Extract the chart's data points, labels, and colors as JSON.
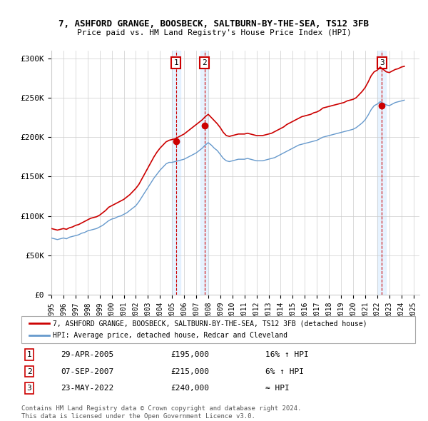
{
  "title1": "7, ASHFORD GRANGE, BOOSBECK, SALTBURN-BY-THE-SEA, TS12 3FB",
  "title2": "Price paid vs. HM Land Registry's House Price Index (HPI)",
  "ylabel": "",
  "background_color": "#ffffff",
  "plot_bg_color": "#ffffff",
  "grid_color": "#cccccc",
  "red_line_color": "#cc0000",
  "blue_line_color": "#6699cc",
  "sale1_date": "29-APR-2005",
  "sale1_price": 195000,
  "sale1_hpi": "16% ↑ HPI",
  "sale2_date": "07-SEP-2007",
  "sale2_price": 215000,
  "sale2_hpi": "6% ↑ HPI",
  "sale3_date": "23-MAY-2022",
  "sale3_price": 240000,
  "sale3_hpi": "≈ HPI",
  "legend_label_red": "7, ASHFORD GRANGE, BOOSBECK, SALTBURN-BY-THE-SEA, TS12 3FB (detached house)",
  "legend_label_blue": "HPI: Average price, detached house, Redcar and Cleveland",
  "footer1": "Contains HM Land Registry data © Crown copyright and database right 2024.",
  "footer2": "This data is licensed under the Open Government Licence v3.0.",
  "xmin": 1995.0,
  "xmax": 2025.5,
  "ymin": 0,
  "ymax": 310000,
  "yticks": [
    0,
    50000,
    100000,
    150000,
    200000,
    250000,
    300000
  ],
  "ytick_labels": [
    "£0",
    "£50K",
    "£100K",
    "£150K",
    "£200K",
    "£250K",
    "£300K"
  ],
  "sale1_x": 2005.33,
  "sale2_x": 2007.68,
  "sale3_x": 2022.39,
  "hpi_data_x": [
    1995.0,
    1995.25,
    1995.5,
    1995.75,
    1996.0,
    1996.25,
    1996.5,
    1996.75,
    1997.0,
    1997.25,
    1997.5,
    1997.75,
    1998.0,
    1998.25,
    1998.5,
    1998.75,
    1999.0,
    1999.25,
    1999.5,
    1999.75,
    2000.0,
    2000.25,
    2000.5,
    2000.75,
    2001.0,
    2001.25,
    2001.5,
    2001.75,
    2002.0,
    2002.25,
    2002.5,
    2002.75,
    2003.0,
    2003.25,
    2003.5,
    2003.75,
    2004.0,
    2004.25,
    2004.5,
    2004.75,
    2005.0,
    2005.25,
    2005.5,
    2005.75,
    2006.0,
    2006.25,
    2006.5,
    2006.75,
    2007.0,
    2007.25,
    2007.5,
    2007.75,
    2008.0,
    2008.25,
    2008.5,
    2008.75,
    2009.0,
    2009.25,
    2009.5,
    2009.75,
    2010.0,
    2010.25,
    2010.5,
    2010.75,
    2011.0,
    2011.25,
    2011.5,
    2011.75,
    2012.0,
    2012.25,
    2012.5,
    2012.75,
    2013.0,
    2013.25,
    2013.5,
    2013.75,
    2014.0,
    2014.25,
    2014.5,
    2014.75,
    2015.0,
    2015.25,
    2015.5,
    2015.75,
    2016.0,
    2016.25,
    2016.5,
    2016.75,
    2017.0,
    2017.25,
    2017.5,
    2017.75,
    2018.0,
    2018.25,
    2018.5,
    2018.75,
    2019.0,
    2019.25,
    2019.5,
    2019.75,
    2020.0,
    2020.25,
    2020.5,
    2020.75,
    2021.0,
    2021.25,
    2021.5,
    2021.75,
    2022.0,
    2022.25,
    2022.5,
    2022.75,
    2023.0,
    2023.25,
    2023.5,
    2023.75,
    2024.0,
    2024.25
  ],
  "hpi_data_y": [
    72000,
    71000,
    70000,
    71000,
    72000,
    71000,
    73000,
    74000,
    75000,
    76000,
    78000,
    79000,
    81000,
    82000,
    83000,
    84000,
    86000,
    88000,
    91000,
    94000,
    96000,
    97000,
    99000,
    100000,
    102000,
    104000,
    107000,
    110000,
    113000,
    118000,
    124000,
    130000,
    136000,
    142000,
    148000,
    153000,
    158000,
    162000,
    166000,
    168000,
    168000,
    169000,
    170000,
    171000,
    172000,
    174000,
    176000,
    178000,
    180000,
    183000,
    186000,
    190000,
    193000,
    190000,
    186000,
    183000,
    178000,
    173000,
    170000,
    169000,
    170000,
    171000,
    172000,
    172000,
    172000,
    173000,
    172000,
    171000,
    170000,
    170000,
    170000,
    171000,
    172000,
    173000,
    174000,
    176000,
    178000,
    180000,
    182000,
    184000,
    186000,
    188000,
    190000,
    191000,
    192000,
    193000,
    194000,
    195000,
    196000,
    198000,
    200000,
    201000,
    202000,
    203000,
    204000,
    205000,
    206000,
    207000,
    208000,
    209000,
    210000,
    212000,
    215000,
    218000,
    222000,
    228000,
    235000,
    240000,
    242000,
    245000,
    243000,
    241000,
    240000,
    242000,
    244000,
    245000,
    246000,
    247000
  ],
  "red_data_x": [
    1995.0,
    1995.25,
    1995.5,
    1995.75,
    1996.0,
    1996.25,
    1996.5,
    1996.75,
    1997.0,
    1997.25,
    1997.5,
    1997.75,
    1998.0,
    1998.25,
    1998.5,
    1998.75,
    1999.0,
    1999.25,
    1999.5,
    1999.75,
    2000.0,
    2000.25,
    2000.5,
    2000.75,
    2001.0,
    2001.25,
    2001.5,
    2001.75,
    2002.0,
    2002.25,
    2002.5,
    2002.75,
    2003.0,
    2003.25,
    2003.5,
    2003.75,
    2004.0,
    2004.25,
    2004.5,
    2004.75,
    2005.0,
    2005.25,
    2005.5,
    2005.75,
    2006.0,
    2006.25,
    2006.5,
    2006.75,
    2007.0,
    2007.25,
    2007.5,
    2007.75,
    2008.0,
    2008.25,
    2008.5,
    2008.75,
    2009.0,
    2009.25,
    2009.5,
    2009.75,
    2010.0,
    2010.25,
    2010.5,
    2010.75,
    2011.0,
    2011.25,
    2011.5,
    2011.75,
    2012.0,
    2012.25,
    2012.5,
    2012.75,
    2013.0,
    2013.25,
    2013.5,
    2013.75,
    2014.0,
    2014.25,
    2014.5,
    2014.75,
    2015.0,
    2015.25,
    2015.5,
    2015.75,
    2016.0,
    2016.25,
    2016.5,
    2016.75,
    2017.0,
    2017.25,
    2017.5,
    2017.75,
    2018.0,
    2018.25,
    2018.5,
    2018.75,
    2019.0,
    2019.25,
    2019.5,
    2019.75,
    2020.0,
    2020.25,
    2020.5,
    2020.75,
    2021.0,
    2021.25,
    2021.5,
    2021.75,
    2022.0,
    2022.25,
    2022.5,
    2022.75,
    2023.0,
    2023.25,
    2023.5,
    2023.75,
    2024.0,
    2024.25
  ],
  "red_data_y": [
    84000,
    83000,
    82000,
    83000,
    84000,
    83000,
    85000,
    86000,
    88000,
    89000,
    91000,
    93000,
    95000,
    97000,
    98000,
    99000,
    101000,
    104000,
    107000,
    111000,
    113000,
    115000,
    117000,
    119000,
    121000,
    124000,
    127000,
    131000,
    135000,
    140000,
    147000,
    154000,
    161000,
    168000,
    175000,
    181000,
    186000,
    190000,
    194000,
    196000,
    197000,
    198000,
    200000,
    202000,
    204000,
    207000,
    210000,
    213000,
    216000,
    219000,
    222000,
    226000,
    229000,
    225000,
    221000,
    217000,
    212000,
    206000,
    202000,
    201000,
    202000,
    203000,
    204000,
    204000,
    204000,
    205000,
    204000,
    203000,
    202000,
    202000,
    202000,
    203000,
    204000,
    205000,
    207000,
    209000,
    211000,
    213000,
    216000,
    218000,
    220000,
    222000,
    224000,
    226000,
    227000,
    228000,
    229000,
    231000,
    232000,
    234000,
    237000,
    238000,
    239000,
    240000,
    241000,
    242000,
    243000,
    244000,
    246000,
    247000,
    248000,
    250000,
    254000,
    258000,
    263000,
    270000,
    278000,
    283000,
    285000,
    289000,
    286000,
    283000,
    282000,
    284000,
    286000,
    287000,
    289000,
    290000
  ]
}
